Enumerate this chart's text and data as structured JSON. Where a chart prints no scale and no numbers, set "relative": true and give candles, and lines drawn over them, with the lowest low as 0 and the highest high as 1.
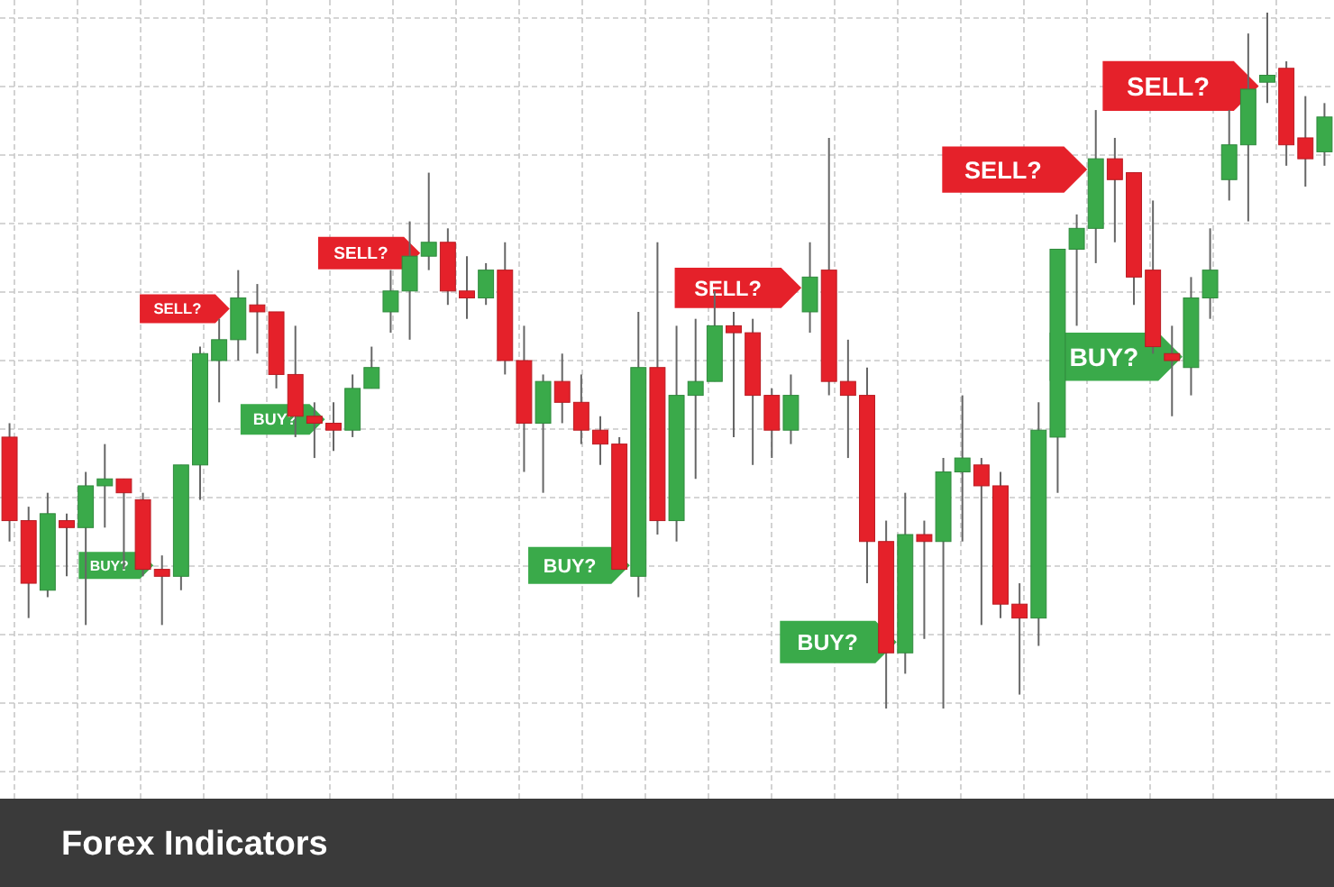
{
  "chart_data": {
    "type": "candlestick",
    "title": "Forex Indicators",
    "relative": true,
    "grid": true,
    "categories": [
      null,
      null,
      null,
      null,
      null,
      null,
      null,
      null,
      null,
      null,
      null,
      null,
      null,
      null,
      null,
      null,
      null,
      null,
      null,
      null,
      null,
      null,
      null,
      null,
      null,
      null,
      null,
      null,
      null,
      null,
      null,
      null,
      null,
      null,
      null,
      null,
      null,
      null,
      null,
      null,
      null,
      null,
      null,
      null,
      null,
      null,
      null,
      null,
      null,
      null,
      null,
      null,
      null,
      null,
      null,
      null,
      null,
      null,
      null,
      null,
      null,
      null,
      null,
      null,
      null,
      null,
      null,
      null,
      null,
      null
    ],
    "series": [
      {
        "colors": [
          "#e5212a",
          "#e5212a",
          "#3aaa4a",
          "#e5212a",
          "#3aaa4a",
          "#3aaa4a",
          "#e5212a",
          "#e5212a",
          "#e5212a",
          "#3aaa4a",
          "#3aaa4a",
          "#3aaa4a",
          "#3aaa4a",
          "#e5212a",
          "#e5212a",
          "#e5212a",
          "#e5212a",
          "#e5212a",
          "#3aaa4a",
          "#3aaa4a",
          "#3aaa4a",
          "#3aaa4a",
          "#3aaa4a",
          "#e5212a",
          "#e5212a",
          "#3aaa4a",
          "#e5212a",
          "#e5212a",
          "#3aaa4a",
          "#e5212a",
          "#e5212a",
          "#e5212a",
          "#e5212a",
          "#3aaa4a",
          "#e5212a",
          "#3aaa4a",
          "#3aaa4a",
          "#3aaa4a",
          "#e5212a",
          "#e5212a",
          "#e5212a",
          "#3aaa4a",
          "#3aaa4a",
          "#e5212a",
          "#e5212a",
          "#e5212a",
          "#e5212a",
          "#3aaa4a",
          "#e5212a",
          "#3aaa4a",
          "#3aaa4a",
          "#e5212a",
          "#e5212a",
          "#e5212a",
          "#3aaa4a",
          "#3aaa4a",
          "#3aaa4a",
          "#3aaa4a",
          "#e5212a",
          "#e5212a",
          "#e5212a",
          "#e5212a",
          "#3aaa4a",
          "#3aaa4a",
          "#3aaa4a",
          "#3aaa4a",
          "#3aaa4a",
          "#e5212a",
          "#e5212a",
          "#3aaa4a"
        ],
        "ohlc": [
          [
            0.39,
            0.41,
            0.24,
            0.27
          ],
          [
            0.27,
            0.29,
            0.13,
            0.18
          ],
          [
            0.17,
            0.31,
            0.16,
            0.28
          ],
          [
            0.27,
            0.28,
            0.19,
            0.26
          ],
          [
            0.26,
            0.34,
            0.12,
            0.32
          ],
          [
            0.32,
            0.38,
            0.26,
            0.33
          ],
          [
            0.33,
            0.33,
            0.2,
            0.31
          ],
          [
            0.3,
            0.31,
            0.19,
            0.2
          ],
          [
            0.2,
            0.22,
            0.12,
            0.19
          ],
          [
            0.19,
            0.35,
            0.17,
            0.35
          ],
          [
            0.35,
            0.52,
            0.3,
            0.51
          ],
          [
            0.5,
            0.56,
            0.44,
            0.53
          ],
          [
            0.53,
            0.63,
            0.5,
            0.59
          ],
          [
            0.58,
            0.61,
            0.51,
            0.57
          ],
          [
            0.57,
            0.57,
            0.46,
            0.48
          ],
          [
            0.48,
            0.55,
            0.39,
            0.42
          ],
          [
            0.42,
            0.44,
            0.36,
            0.41
          ],
          [
            0.41,
            0.44,
            0.37,
            0.4
          ],
          [
            0.4,
            0.48,
            0.39,
            0.46
          ],
          [
            0.46,
            0.52,
            0.46,
            0.49
          ],
          [
            0.57,
            0.63,
            0.54,
            0.6
          ],
          [
            0.6,
            0.7,
            0.53,
            0.65
          ],
          [
            0.65,
            0.77,
            0.63,
            0.67
          ],
          [
            0.67,
            0.69,
            0.58,
            0.6
          ],
          [
            0.6,
            0.65,
            0.56,
            0.59
          ],
          [
            0.59,
            0.64,
            0.58,
            0.63
          ],
          [
            0.63,
            0.67,
            0.48,
            0.5
          ],
          [
            0.5,
            0.55,
            0.34,
            0.41
          ],
          [
            0.41,
            0.48,
            0.31,
            0.47
          ],
          [
            0.47,
            0.51,
            0.41,
            0.44
          ],
          [
            0.44,
            0.48,
            0.38,
            0.4
          ],
          [
            0.4,
            0.42,
            0.35,
            0.38
          ],
          [
            0.38,
            0.39,
            0.2,
            0.2
          ],
          [
            0.19,
            0.57,
            0.16,
            0.49
          ],
          [
            0.49,
            0.67,
            0.25,
            0.27
          ],
          [
            0.27,
            0.55,
            0.24,
            0.45
          ],
          [
            0.45,
            0.56,
            0.33,
            0.47
          ],
          [
            0.47,
            0.6,
            0.47,
            0.55
          ],
          [
            0.55,
            0.57,
            0.39,
            0.54
          ],
          [
            0.54,
            0.56,
            0.35,
            0.45
          ],
          [
            0.45,
            0.46,
            0.36,
            0.4
          ],
          [
            0.4,
            0.48,
            0.38,
            0.45
          ],
          [
            0.57,
            0.67,
            0.54,
            0.62
          ],
          [
            0.63,
            0.82,
            0.45,
            0.47
          ],
          [
            0.47,
            0.53,
            0.36,
            0.45
          ],
          [
            0.45,
            0.49,
            0.18,
            0.24
          ],
          [
            0.24,
            0.27,
            0,
            0.08
          ],
          [
            0.08,
            0.31,
            0.05,
            0.25
          ],
          [
            0.25,
            0.27,
            0.1,
            0.24
          ],
          [
            0.24,
            0.36,
            0,
            0.34
          ],
          [
            0.34,
            0.45,
            0.24,
            0.36
          ],
          [
            0.35,
            0.36,
            0.12,
            0.32
          ],
          [
            0.32,
            0.34,
            0.13,
            0.15
          ],
          [
            0.15,
            0.18,
            0.02,
            0.13
          ],
          [
            0.13,
            0.44,
            0.09,
            0.4
          ],
          [
            0.39,
            0.66,
            0.31,
            0.66
          ],
          [
            0.66,
            0.71,
            0.55,
            0.69
          ],
          [
            0.69,
            0.86,
            0.64,
            0.79
          ],
          [
            0.79,
            0.82,
            0.67,
            0.76
          ],
          [
            0.77,
            0.77,
            0.58,
            0.62
          ],
          [
            0.63,
            0.73,
            0.51,
            0.52
          ],
          [
            0.51,
            0.55,
            0.42,
            0.5
          ],
          [
            0.49,
            0.62,
            0.45,
            0.59
          ],
          [
            0.59,
            0.69,
            0.56,
            0.63
          ],
          [
            0.76,
            0.86,
            0.73,
            0.81
          ],
          [
            0.81,
            0.97,
            0.7,
            0.89
          ],
          [
            0.9,
            1.0,
            0.87,
            0.91
          ],
          [
            0.92,
            0.93,
            0.78,
            0.81
          ],
          [
            0.82,
            0.88,
            0.75,
            0.79
          ],
          [
            0.8,
            0.87,
            0.78,
            0.85
          ]
        ]
      }
    ],
    "annotations": [
      "BUY?",
      "SELL?",
      "BUY?",
      "SELL?",
      "BUY?",
      "SELL?",
      "BUY?",
      "SELL?",
      "BUY?",
      "SELL?"
    ]
  }
}
